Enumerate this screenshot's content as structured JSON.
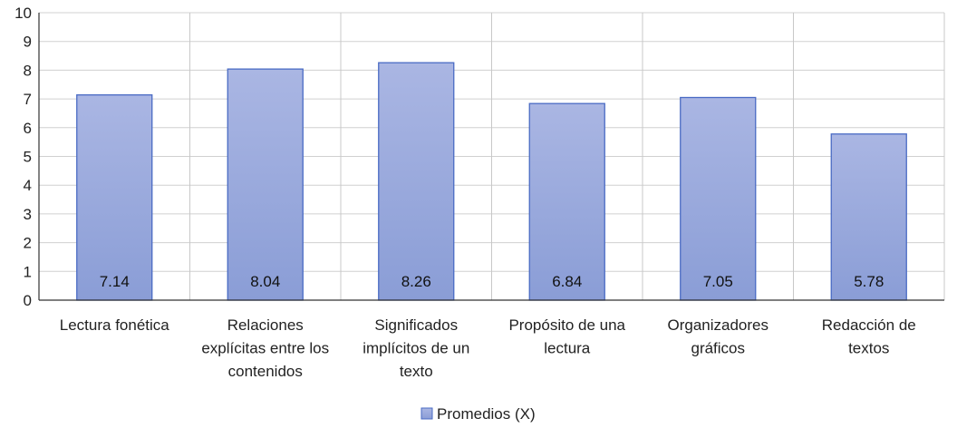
{
  "chart_data": {
    "type": "bar",
    "categories": [
      [
        "Lectura fonética"
      ],
      [
        "Relaciones",
        "explícitas entre los",
        "contenidos"
      ],
      [
        "Significados",
        "implícitos de un",
        "texto"
      ],
      [
        "Propósito de una",
        "lectura"
      ],
      [
        "Organizadores",
        "gráficos"
      ],
      [
        "Redacción de",
        "textos"
      ]
    ],
    "series": [
      {
        "name": "Promedios (X)",
        "values": [
          7.14,
          8.04,
          8.26,
          6.84,
          7.05,
          5.78
        ],
        "labels": [
          "7.14",
          "8.04",
          "8.26",
          "6.84",
          "7.05",
          "5.78"
        ],
        "color": "#8ea1d8"
      }
    ],
    "yticks": [
      "0",
      "1",
      "2",
      "3",
      "4",
      "5",
      "6",
      "7",
      "8",
      "9",
      "10"
    ],
    "ylim": [
      0,
      10
    ],
    "grid": "vertical-and-horizontal",
    "legend": "bottom-center"
  }
}
